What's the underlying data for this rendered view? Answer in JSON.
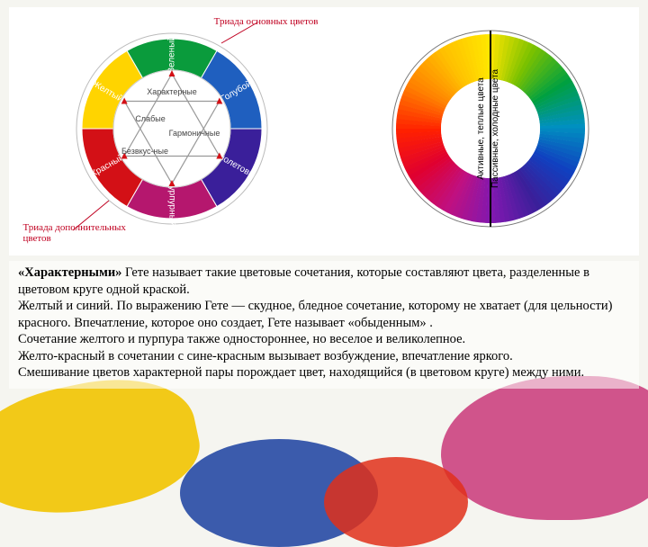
{
  "left_wheel": {
    "type": "color-wheel",
    "segments": [
      {
        "label": "Зеленый",
        "color": "#0a9b3c",
        "angle_start": 60,
        "angle_end": 120,
        "label_color": "#ffffff"
      },
      {
        "label": "Голубой",
        "color": "#1f5fbf",
        "angle_start": 0,
        "angle_end": 60,
        "label_color": "#ffffff"
      },
      {
        "label": "Фиолетовый",
        "color": "#3a1f9a",
        "angle_start": 300,
        "angle_end": 360,
        "label_color": "#ffffff"
      },
      {
        "label": "Пурпурный",
        "color": "#b5176e",
        "angle_start": 240,
        "angle_end": 300,
        "label_color": "#ffffff"
      },
      {
        "label": "Красный",
        "color": "#d31016",
        "angle_start": 180,
        "angle_end": 240,
        "label_color": "#ffffff"
      },
      {
        "label": "Желтый",
        "color": "#ffd400",
        "angle_start": 120,
        "angle_end": 180,
        "label_color": "#6b5a00"
      }
    ],
    "inner_labels": [
      "Характерные",
      "Гармоничные",
      "Слабые",
      "Безвкус-ные"
    ],
    "outer_r": 100,
    "inner_r": 65,
    "star_colors": {
      "up": "#d31016",
      "down": "#d31016",
      "line": "#888"
    },
    "ext_top": "Триада основных цветов",
    "ext_bottom": "Триада дополнительных цветов"
  },
  "right_wheel": {
    "type": "color-gradient-wheel",
    "outer_r": 105,
    "inner_r": 55,
    "divider_color": "#000",
    "left_label": "Активные, теплые цвета",
    "right_label": "Пассивные, холодные цвета",
    "stops": [
      {
        "a": 90,
        "c": "#ffe600"
      },
      {
        "a": 60,
        "c": "#7ac100"
      },
      {
        "a": 30,
        "c": "#00a040"
      },
      {
        "a": 0,
        "c": "#0090c0"
      },
      {
        "a": 330,
        "c": "#1040c0"
      },
      {
        "a": 300,
        "c": "#3a1f9a"
      },
      {
        "a": 270,
        "c": "#8018b0"
      },
      {
        "a": 240,
        "c": "#c01080"
      },
      {
        "a": 210,
        "c": "#e00030"
      },
      {
        "a": 180,
        "c": "#ff2000"
      },
      {
        "a": 150,
        "c": "#ff8000"
      },
      {
        "a": 120,
        "c": "#ffc000"
      }
    ]
  },
  "paragraphs": {
    "p1a": "«Характерными»",
    "p1b": " Гете называет такие цветовые сочетания, которые составляют цвета, разделенные в цветовом круге одной краской.",
    "p2": "Желтый и синий. По выражению Гете — скудное, бледное сочетание, которому не хватает (для цельности) красного. Впечатление, которое оно создает, Гете называет «обыденным» .",
    "p3": "Сочетание желтого и пурпура также одностороннее, но веселое и великолепное.",
    "p4": "Желто-красный в сочетании с сине-красным вызывает возбуждение, впечатление яркого.",
    "p5": "Смешивание цветов характерной пары порождает цвет, находящийся (в цветовом круге) между ними."
  },
  "bg": {
    "c1": "#f2c400",
    "c2": "#1a3fa0",
    "c3": "#c01060",
    "c4": "#e0301a",
    "c5": "#0a9b3c"
  }
}
